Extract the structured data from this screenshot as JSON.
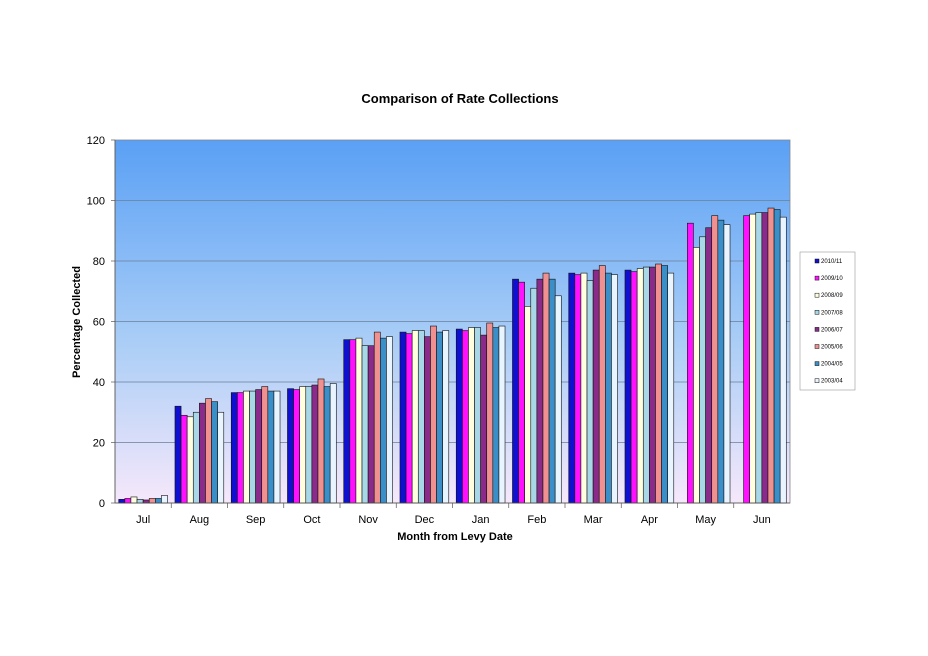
{
  "chart_data": {
    "type": "bar",
    "title": "Comparison  of Rate Collections",
    "xlabel": "Month from Levy Date",
    "ylabel": "Percentage Collected",
    "ylim": [
      0,
      120
    ],
    "yticks": [
      "0",
      "20",
      "40",
      "60",
      "80",
      "100",
      "120"
    ],
    "grid": true,
    "legend_position": "right",
    "categories": [
      "Jul",
      "Aug",
      "Sep",
      "Oct",
      "Nov",
      "Dec",
      "Jan",
      "Feb",
      "Mar",
      "Apr",
      "May",
      "Jun"
    ],
    "series": [
      {
        "name": "2010/11",
        "color": "#1010d0",
        "values": [
          1.2,
          32,
          36.5,
          37.8,
          54,
          56.5,
          57.5,
          74,
          76,
          77,
          null,
          null
        ]
      },
      {
        "name": "2009/10",
        "color": "#ff10ff",
        "values": [
          1.5,
          29,
          36.5,
          37.5,
          54,
          56,
          57,
          73,
          75.5,
          76.5,
          92.5,
          95
        ]
      },
      {
        "name": "2008/09",
        "color": "#ffffe0",
        "values": [
          2,
          28.5,
          37,
          38.5,
          54.5,
          57,
          58,
          65,
          76,
          77.5,
          84.5,
          95.5
        ]
      },
      {
        "name": "2007/08",
        "color": "#a8d8e8",
        "values": [
          1.2,
          30,
          37,
          38.5,
          52,
          57,
          58,
          71,
          73.5,
          78,
          88,
          96
        ]
      },
      {
        "name": "2006/07",
        "color": "#8a2a8a",
        "values": [
          1,
          33,
          37.5,
          39,
          52,
          55,
          55.5,
          74,
          77,
          78,
          91,
          96
        ]
      },
      {
        "name": "2005/06",
        "color": "#f09090",
        "values": [
          1.5,
          34.5,
          38.5,
          41,
          56.5,
          58.5,
          59.5,
          76,
          78.5,
          79,
          95,
          97.5
        ]
      },
      {
        "name": "2004/05",
        "color": "#3a8fc8",
        "values": [
          1.5,
          33.5,
          37,
          38.5,
          54.5,
          56.5,
          58,
          74,
          76,
          78.5,
          93.5,
          97
        ]
      },
      {
        "name": "2003/04",
        "color": "#e8f4ff",
        "values": [
          2.5,
          30,
          37,
          39.5,
          55,
          57,
          58.5,
          68.5,
          75.5,
          76,
          92,
          94.5
        ]
      }
    ]
  }
}
